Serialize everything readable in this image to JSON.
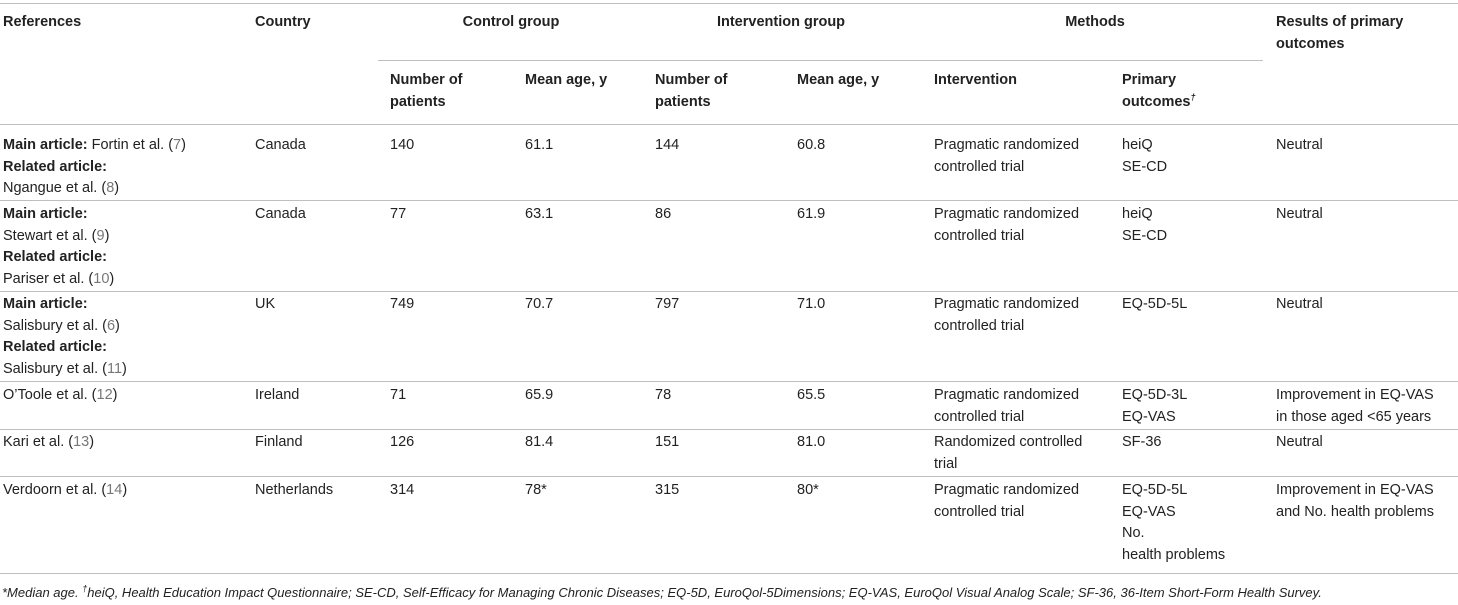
{
  "header": {
    "references": "References",
    "country": "Country",
    "control_group": "Control group",
    "intervention_group": "Intervention group",
    "methods": "Methods",
    "results_line1": "Results of primary",
    "results_line2": "outcomes",
    "sub": {
      "ctrl_n_1": "Number of",
      "ctrl_n_2": "patients",
      "ctrl_age": "Mean age, y",
      "int_n_1": "Number of",
      "int_n_2": "patients",
      "int_age": "Mean age, y",
      "intervention": "Intervention",
      "primary_1": "Primary",
      "primary_2": "outcomes",
      "primary_mark": "†"
    }
  },
  "labels": {
    "main": "Main article:",
    "related": "Related article:"
  },
  "rows": [
    {
      "main_ref": "Fortin et al. (",
      "main_num": "7",
      "main_close": ")",
      "related_ref": "Ngangue et al. (",
      "related_num": "8",
      "related_close": ")",
      "country": "Canada",
      "ctrl_n": "140",
      "ctrl_age": "61.1",
      "int_n": "144",
      "int_age": "60.8",
      "method_1": "Pragmatic randomized",
      "method_2": "controlled trial",
      "outcome_1": "heiQ",
      "outcome_2": "SE-CD",
      "result": "Neutral"
    },
    {
      "main_ref": "Stewart et al. (",
      "main_num": "9",
      "main_close": ")",
      "related_ref": "Pariser et al. (",
      "related_num": "10",
      "related_close": ")",
      "country": "Canada",
      "ctrl_n": "77",
      "ctrl_age": "63.1",
      "int_n": "86",
      "int_age": "61.9",
      "method_1": "Pragmatic randomized",
      "method_2": "controlled trial",
      "outcome_1": "heiQ",
      "outcome_2": "SE-CD",
      "result": "Neutral"
    },
    {
      "main_ref": "Salisbury et al. (",
      "main_num": "6",
      "main_close": ")",
      "related_ref": "Salisbury et al. (",
      "related_num": "11",
      "related_close": ")",
      "country": "UK",
      "ctrl_n": "749",
      "ctrl_age": "70.7",
      "int_n": "797",
      "int_age": "71.0",
      "method_1": "Pragmatic randomized",
      "method_2": "controlled trial",
      "outcome_1": "EQ-5D-5L",
      "result": "Neutral"
    },
    {
      "ref": "O’Toole et al. (",
      "ref_num": "12",
      "ref_close": ")",
      "country": "Ireland",
      "ctrl_n": "71",
      "ctrl_age": "65.9",
      "int_n": "78",
      "int_age": "65.5",
      "method_1": "Pragmatic randomized",
      "method_2": "controlled trial",
      "outcome_1": "EQ-5D-3L",
      "outcome_2": "EQ-VAS",
      "result_1": "Improvement in EQ-VAS",
      "result_2": "in those aged <65 years"
    },
    {
      "ref": "Kari et al. (",
      "ref_num": "13",
      "ref_close": ")",
      "country": "Finland",
      "ctrl_n": "126",
      "ctrl_age": "81.4",
      "int_n": "151",
      "int_age": "81.0",
      "method_1": "Randomized controlled",
      "method_2": "trial",
      "outcome_1": "SF-36",
      "result": "Neutral"
    },
    {
      "ref": "Verdoorn et al. (",
      "ref_num": "14",
      "ref_close": ")",
      "country": "Netherlands",
      "ctrl_n": "314",
      "ctrl_age": "78*",
      "int_n": "315",
      "int_age": "80*",
      "method_1": "Pragmatic randomized",
      "method_2": "controlled trial",
      "outcome_1": "EQ-5D-5L",
      "outcome_2": "EQ-VAS",
      "outcome_3": "No.",
      "outcome_4": "health problems",
      "result_1": "Improvement in EQ-VAS",
      "result_2": "and No. health problems"
    }
  ],
  "footnote": {
    "part1": "*Median age. ",
    "mark": "†",
    "part2": "heiQ, Health Education Impact Questionnaire; SE-CD, Self-Efficacy for Managing Chronic Diseases; EQ-5D, EuroQol-5Dimensions; EQ-VAS, EuroQol Visual Analog Scale; SF-36, 36-Item Short-Form Health Survey."
  }
}
